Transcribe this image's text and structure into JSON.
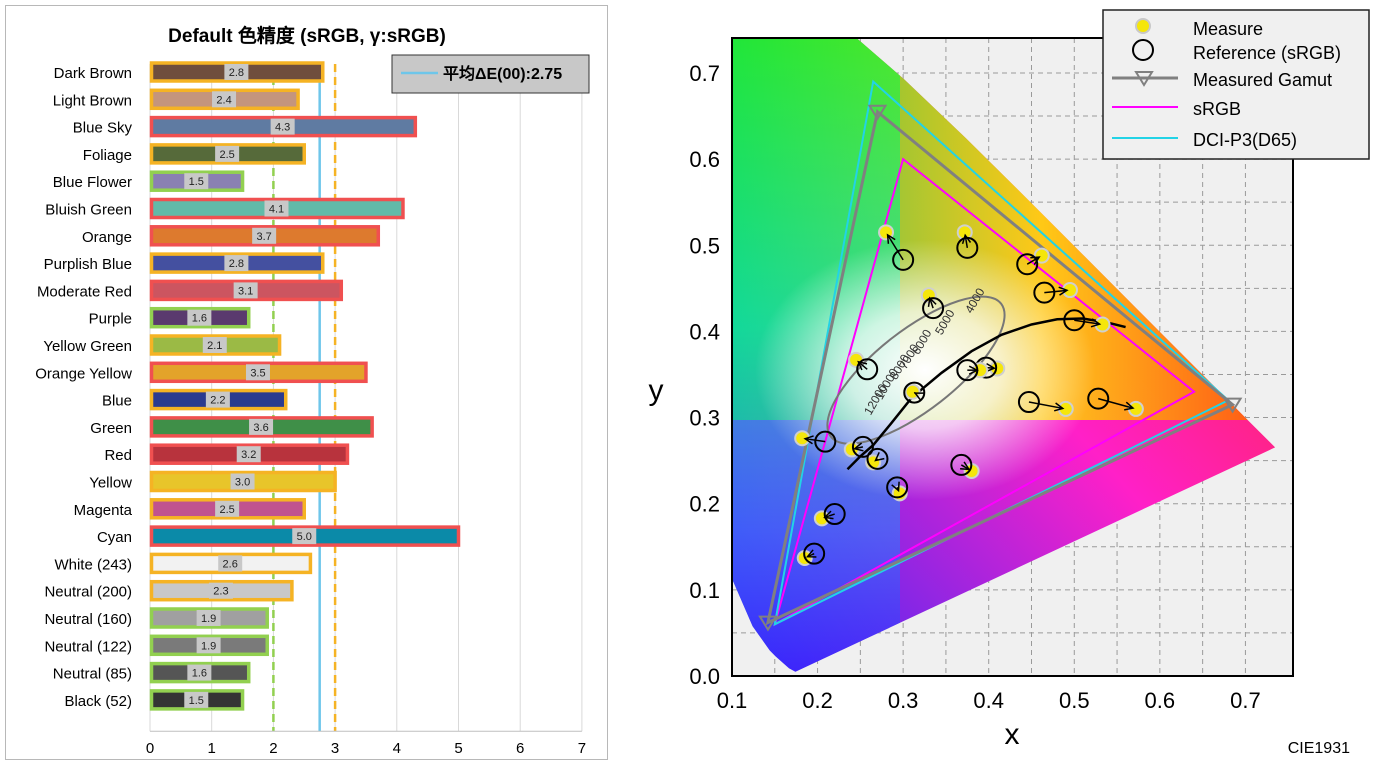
{
  "chart_data": [
    {
      "type": "bar",
      "orientation": "horizontal",
      "title": "Default 色精度 (sRGB, γ:sRGB)",
      "categories": [
        "Dark Brown",
        "Light Brown",
        "Blue Sky",
        "Foliage",
        "Blue Flower",
        "Bluish Green",
        "Orange",
        "Purplish Blue",
        "Moderate Red",
        "Purple",
        "Yellow Green",
        "Orange Yellow",
        "Blue",
        "Green",
        "Red",
        "Yellow",
        "Magenta",
        "Cyan",
        "White (243)",
        "Neutral (200)",
        "Neutral (160)",
        "Neutral (122)",
        "Neutral (85)",
        "Black (52)"
      ],
      "values": [
        2.8,
        2.4,
        4.3,
        2.5,
        1.5,
        4.1,
        3.7,
        2.8,
        3.1,
        1.6,
        2.1,
        3.5,
        2.2,
        3.6,
        3.2,
        3.0,
        2.5,
        5.0,
        2.6,
        2.3,
        1.9,
        1.9,
        1.6,
        1.5
      ],
      "value_labels": [
        "2.8",
        "2.4",
        "4.3",
        "2.5",
        "1.5",
        "4.1",
        "3.7",
        "2.8",
        "3.1",
        "1.6",
        "2.1",
        "3.5",
        "2.2",
        "3.6",
        "3.2",
        "3.0",
        "2.5",
        "5.0",
        "2.6",
        "2.3",
        "1.9",
        "1.9",
        "1.6",
        "1.5"
      ],
      "bar_colors": [
        "#6f4e3d",
        "#c4957d",
        "#5f7ba2",
        "#566a3a",
        "#8a80b3",
        "#62baa8",
        "#dd7a2e",
        "#4450a0",
        "#cc5560",
        "#5a3a6e",
        "#9bba45",
        "#e3a32a",
        "#2b3b8f",
        "#3f8f48",
        "#b8333d",
        "#e8c52a",
        "#c0538f",
        "#0b8aa8",
        "#f2f2f2",
        "#c8c8c8",
        "#a0a0a0",
        "#7a7a7a",
        "#555555",
        "#343434"
      ],
      "xlim": [
        0,
        7
      ],
      "xticks": [
        "0",
        "1",
        "2",
        "3",
        "4",
        "5",
        "6",
        "7"
      ],
      "thresholds": [
        {
          "value": 2,
          "color": "#92d050",
          "style": "dashed"
        },
        {
          "value": 3,
          "color": "#f5b324",
          "style": "dashed"
        },
        {
          "value": 2.75,
          "color": "#6ec6ea",
          "style": "solid"
        }
      ],
      "outline_colors": {
        "le2": "#92d050",
        "le3": "#f5b324",
        "gt3": "#f05050"
      },
      "legend": {
        "label": "平均ΔE(00):2.75",
        "position": "top-right",
        "color": "#6ec6ea"
      },
      "grid": "vertical"
    },
    {
      "type": "scatter",
      "title": "",
      "xlabel": "x",
      "ylabel": "y",
      "xlim": [
        0.1,
        0.75
      ],
      "ylim": [
        0.0,
        0.74
      ],
      "xticks": [
        "0.1",
        "0.2",
        "0.3",
        "0.4",
        "0.5",
        "0.6",
        "0.7"
      ],
      "yticks": [
        "0.0",
        "0.1",
        "0.2",
        "0.3",
        "0.4",
        "0.5",
        "0.6",
        "0.7"
      ],
      "grid": "dashed",
      "caption": "CIE1931",
      "legend": {
        "position": "top-right",
        "items": [
          {
            "label": "Measure",
            "color": "#f5e60a"
          },
          {
            "label": "Reference (sRGB)",
            "color": "#000000"
          },
          {
            "label": "Measured Gamut",
            "color": "#808080"
          },
          {
            "label": "sRGB",
            "color": "#ff00ff"
          },
          {
            "label": "DCI-P3(D65)",
            "color": "#22d3e6"
          }
        ]
      },
      "gamut_triangles": [
        {
          "name": "sRGB",
          "points": [
            [
              0.64,
              0.33
            ],
            [
              0.3,
              0.6
            ],
            [
              0.15,
              0.06
            ]
          ]
        },
        {
          "name": "DCI-P3(D65)",
          "points": [
            [
              0.68,
              0.32
            ],
            [
              0.265,
              0.69
            ],
            [
              0.15,
              0.06
            ]
          ]
        },
        {
          "name": "Measured Gamut",
          "points": [
            [
              0.685,
              0.315
            ],
            [
              0.27,
              0.655
            ],
            [
              0.142,
              0.062
            ]
          ]
        }
      ],
      "measure_points": [
        [
          0.28,
          0.515
        ],
        [
          0.372,
          0.515
        ],
        [
          0.33,
          0.442
        ],
        [
          0.462,
          0.488
        ],
        [
          0.495,
          0.448
        ],
        [
          0.533,
          0.408
        ],
        [
          0.41,
          0.357
        ],
        [
          0.39,
          0.355
        ],
        [
          0.245,
          0.367
        ],
        [
          0.311,
          0.33
        ],
        [
          0.49,
          0.31
        ],
        [
          0.572,
          0.31
        ],
        [
          0.182,
          0.276
        ],
        [
          0.24,
          0.263
        ],
        [
          0.265,
          0.248
        ],
        [
          0.38,
          0.238
        ],
        [
          0.296,
          0.212
        ],
        [
          0.205,
          0.183
        ],
        [
          0.185,
          0.137
        ]
      ],
      "reference_points": [
        [
          0.3,
          0.483
        ],
        [
          0.375,
          0.497
        ],
        [
          0.335,
          0.427
        ],
        [
          0.445,
          0.478
        ],
        [
          0.465,
          0.445
        ],
        [
          0.5,
          0.413
        ],
        [
          0.397,
          0.358
        ],
        [
          0.375,
          0.355
        ],
        [
          0.258,
          0.356
        ],
        [
          0.313,
          0.329
        ],
        [
          0.447,
          0.318
        ],
        [
          0.528,
          0.322
        ],
        [
          0.209,
          0.272
        ],
        [
          0.253,
          0.266
        ],
        [
          0.27,
          0.252
        ],
        [
          0.368,
          0.245
        ],
        [
          0.293,
          0.219
        ],
        [
          0.22,
          0.188
        ],
        [
          0.196,
          0.142
        ]
      ],
      "locus_labels": [
        "4000",
        "5000",
        "6000",
        "7000",
        "8000",
        "10000",
        "12000"
      ]
    }
  ]
}
